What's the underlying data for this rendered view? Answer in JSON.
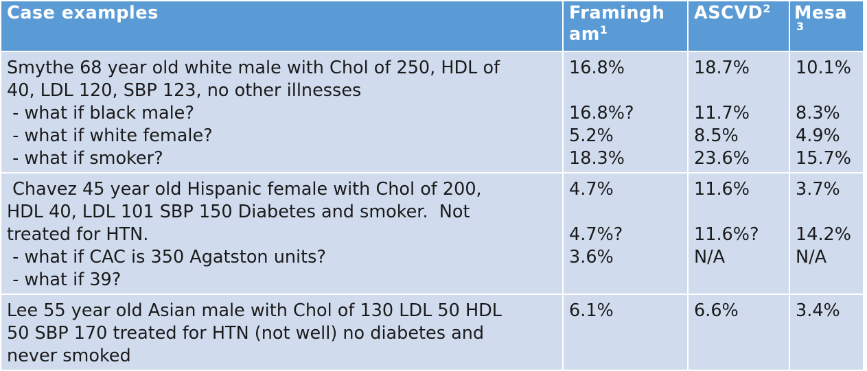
{
  "table": {
    "headers": {
      "case": "Case examples",
      "framingham": "Framingh am",
      "framingham_sup": "1",
      "ascvd": "ASCVD",
      "ascvd_sup": "2",
      "mesa": "Mesa",
      "mesa_sup": "3"
    },
    "rows": [
      {
        "case_lines": [
          "Smythe 68 year old white male with Chol of 250, HDL of",
          "40, LDL 120, SBP 123, no other illnesses",
          " - what if black male?",
          " - what if white female?",
          " - what if smoker?"
        ],
        "framingham": [
          "16.8%",
          "",
          "16.8%?",
          "5.2%",
          "18.3%"
        ],
        "ascvd": [
          "18.7%",
          "",
          "11.7%",
          "8.5%",
          "23.6%"
        ],
        "mesa": [
          "10.1%",
          "",
          "8.3%",
          "4.9%",
          "15.7%"
        ]
      },
      {
        "case_lines": [
          " Chavez 45 year old Hispanic female with Chol of 200,",
          "HDL 40, LDL 101 SBP 150 Diabetes and smoker.  Not",
          "treated for HTN.",
          " - what if CAC is 350 Agatston units?",
          " - what if 39?"
        ],
        "framingham": [
          "4.7%",
          "",
          "4.7%?",
          "3.6%",
          ""
        ],
        "ascvd": [
          "11.6%",
          "",
          "11.6%?",
          "N/A",
          ""
        ],
        "mesa": [
          "3.7%",
          "",
          "14.2%",
          "N/A",
          ""
        ]
      },
      {
        "case_lines": [
          "Lee 55 year old Asian male with Chol of 130 LDL 50 HDL",
          "50 SBP 170 treated for HTN (not well) no diabetes and",
          "never smoked"
        ],
        "framingham": [
          "6.1%"
        ],
        "ascvd": [
          "6.6%"
        ],
        "mesa": [
          "3.4%"
        ]
      }
    ]
  },
  "colors": {
    "header_bg": "#5b9bd5",
    "row_bg": "#d0dcee",
    "header_text": "#ffffff",
    "body_text": "#1a1a1a"
  }
}
